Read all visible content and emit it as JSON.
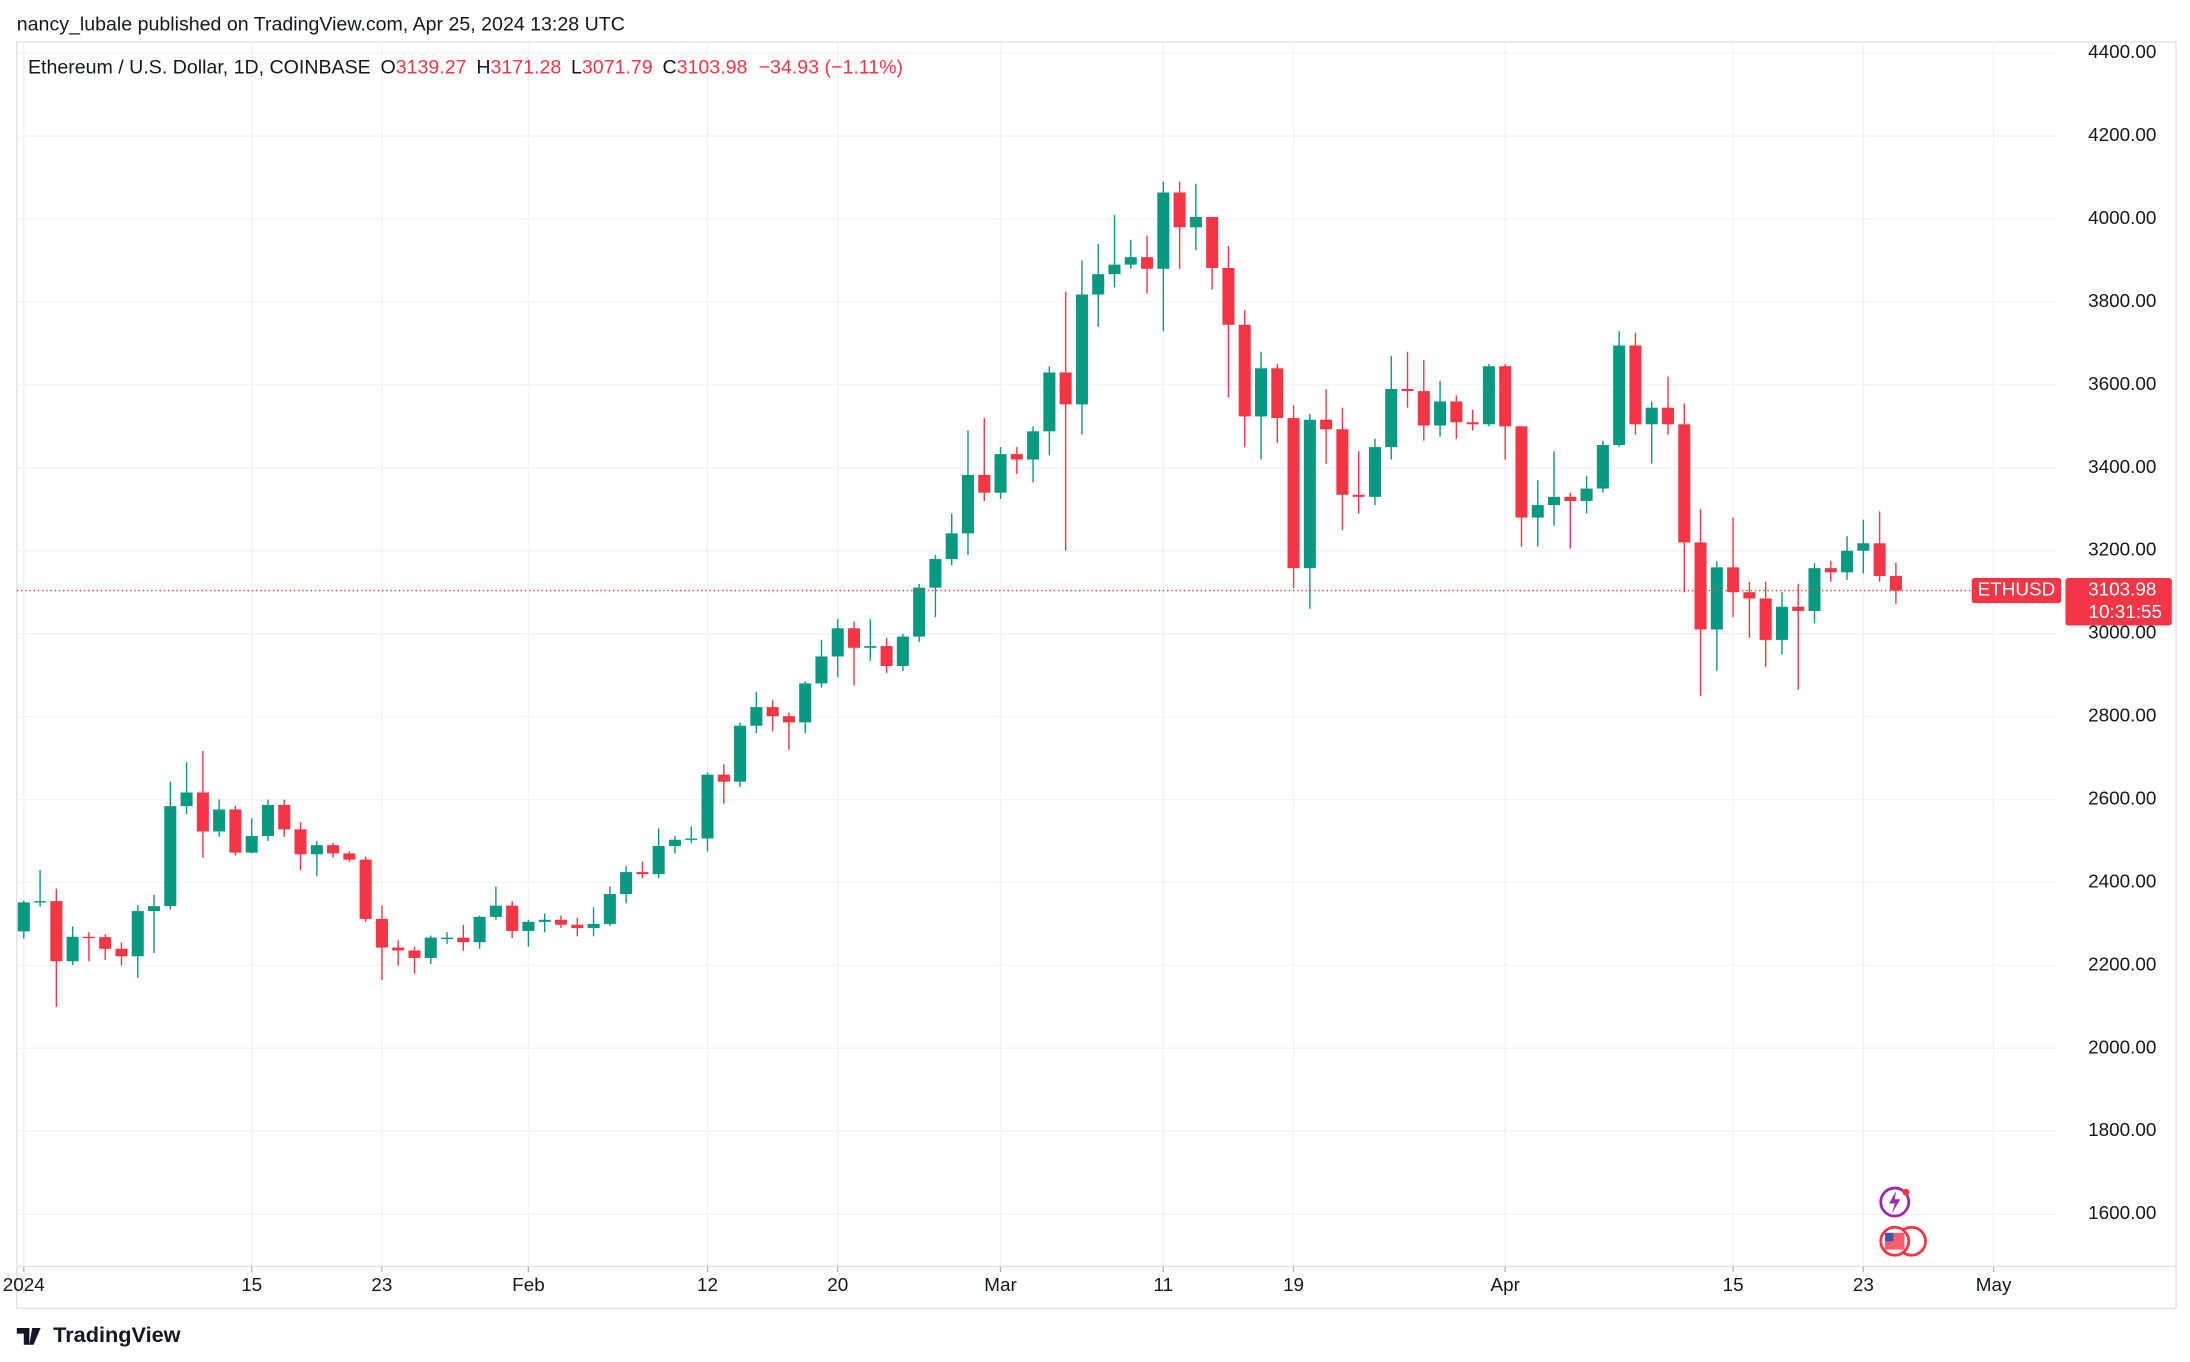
{
  "attribution": "nancy_lubale published on TradingView.com, Apr 25, 2024 13:28 UTC",
  "chart_data": {
    "type": "candlestick",
    "title": "Ethereum / U.S. Dollar, 1D, COINBASE",
    "open_label": "O",
    "high_label": "H",
    "low_label": "L",
    "close_label": "C",
    "change": "−34.93 (−1.11%)",
    "symbol_tag": "ETHUSD",
    "countdown": "10:31:55",
    "up_color": "#089981",
    "down_color": "#f23645",
    "open": [
      2282,
      2352,
      2355,
      2210,
      2269,
      2268,
      2240,
      2222,
      2331,
      2343,
      2584,
      2617,
      2523,
      2576,
      2472,
      2512,
      2587,
      2528,
      2468,
      2490,
      2470,
      2455,
      2312,
      2243,
      2236,
      2218,
      2267,
      2267,
      2256,
      2317,
      2344,
      2283,
      2305,
      2310,
      2298,
      2290,
      2300,
      2372,
      2425,
      2420,
      2488,
      2503,
      2506,
      2660,
      2643,
      2778,
      2823,
      2801,
      2786,
      2880,
      2945,
      3013,
      2966,
      2970,
      2922,
      2993,
      3111,
      3180,
      3242,
      3383,
      3340,
      3433,
      3420,
      3488,
      3630,
      3553,
      3818,
      3867,
      3890,
      3908,
      3880,
      4064,
      3980,
      4005,
      3882,
      3745,
      3524,
      3640,
      3520,
      3158,
      3516,
      3493,
      3335,
      3330,
      3450,
      3590,
      3585,
      3502,
      3560,
      3510,
      3505,
      3645,
      3500,
      3280,
      3310,
      3330,
      3320,
      3350,
      3455,
      3695,
      3505,
      3545,
      3505,
      3220,
      3010,
      3160,
      3100,
      3085,
      2985,
      3065,
      3055,
      3158,
      3148,
      3200,
      3218,
      3139.27
    ],
    "high": [
      2356,
      2430,
      2385,
      2294,
      2280,
      2275,
      2255,
      2345,
      2370,
      2643,
      2690,
      2717,
      2600,
      2585,
      2555,
      2600,
      2600,
      2545,
      2500,
      2495,
      2475,
      2462,
      2345,
      2260,
      2245,
      2272,
      2280,
      2298,
      2320,
      2390,
      2355,
      2310,
      2325,
      2320,
      2315,
      2340,
      2390,
      2440,
      2450,
      2530,
      2512,
      2535,
      2665,
      2685,
      2785,
      2860,
      2840,
      2810,
      2885,
      2985,
      3035,
      3030,
      3035,
      2990,
      3000,
      3120,
      3190,
      3290,
      3490,
      3520,
      3450,
      3450,
      3500,
      3645,
      3825,
      3900,
      3940,
      4010,
      3950,
      3960,
      4090,
      4090,
      4085,
      4005,
      3935,
      3780,
      3680,
      3650,
      3550,
      3530,
      3590,
      3545,
      3440,
      3470,
      3670,
      3680,
      3660,
      3610,
      3575,
      3540,
      3650,
      3650,
      3500,
      3370,
      3440,
      3340,
      3380,
      3465,
      3730,
      3725,
      3560,
      3620,
      3555,
      3300,
      3175,
      3280,
      3125,
      3125,
      3100,
      3120,
      3170,
      3175,
      3235,
      3275,
      3295,
      3171.28
    ],
    "low": [
      2265,
      2342,
      2100,
      2201,
      2210,
      2213,
      2200,
      2170,
      2230,
      2335,
      2565,
      2460,
      2510,
      2465,
      2470,
      2500,
      2510,
      2430,
      2415,
      2460,
      2450,
      2305,
      2165,
      2200,
      2180,
      2203,
      2252,
      2235,
      2240,
      2310,
      2266,
      2245,
      2280,
      2290,
      2270,
      2270,
      2295,
      2350,
      2410,
      2410,
      2470,
      2495,
      2475,
      2590,
      2630,
      2760,
      2765,
      2720,
      2760,
      2870,
      2895,
      2875,
      2935,
      2905,
      2910,
      2980,
      3040,
      3165,
      3190,
      3320,
      3325,
      3385,
      3365,
      3430,
      3200,
      3480,
      3740,
      3835,
      3880,
      3820,
      3730,
      3880,
      3925,
      3830,
      3570,
      3450,
      3420,
      3460,
      3110,
      3060,
      3410,
      3250,
      3290,
      3310,
      3420,
      3545,
      3465,
      3475,
      3470,
      3490,
      3500,
      3420,
      3210,
      3210,
      3260,
      3205,
      3290,
      3340,
      3450,
      3480,
      3410,
      3480,
      3100,
      2850,
      2910,
      3040,
      2990,
      2920,
      2950,
      2865,
      3025,
      3125,
      3130,
      3145,
      3125,
      3071.79
    ],
    "close": [
      2352,
      2355,
      2210,
      2269,
      2268,
      2240,
      2222,
      2331,
      2343,
      2584,
      2617,
      2523,
      2576,
      2472,
      2512,
      2587,
      2528,
      2468,
      2490,
      2470,
      2455,
      2312,
      2243,
      2236,
      2218,
      2267,
      2267,
      2256,
      2317,
      2344,
      2283,
      2305,
      2310,
      2298,
      2290,
      2300,
      2372,
      2425,
      2420,
      2488,
      2503,
      2506,
      2660,
      2643,
      2778,
      2823,
      2801,
      2786,
      2880,
      2945,
      3013,
      2966,
      2970,
      2922,
      2993,
      3111,
      3180,
      3242,
      3383,
      3340,
      3433,
      3420,
      3488,
      3630,
      3553,
      3818,
      3867,
      3890,
      3908,
      3880,
      4064,
      3980,
      4005,
      3882,
      3745,
      3524,
      3640,
      3520,
      3158,
      3516,
      3493,
      3335,
      3330,
      3450,
      3590,
      3585,
      3502,
      3560,
      3510,
      3505,
      3645,
      3500,
      3280,
      3310,
      3330,
      3320,
      3350,
      3455,
      3695,
      3505,
      3545,
      3505,
      3220,
      3010,
      3160,
      3100,
      3085,
      2985,
      3065,
      3055,
      3158,
      3148,
      3200,
      3218,
      3139,
      3103.98
    ],
    "xlim": [
      -0.43,
      124.9
    ],
    "xticks": [
      {
        "value": 0,
        "label": "2024"
      },
      {
        "value": 14,
        "label": "15"
      },
      {
        "value": 22,
        "label": "23"
      },
      {
        "value": 31,
        "label": "Feb"
      },
      {
        "value": 42,
        "label": "12"
      },
      {
        "value": 50,
        "label": "20"
      },
      {
        "value": 60,
        "label": "Mar"
      },
      {
        "value": 70,
        "label": "11"
      },
      {
        "value": 78,
        "label": "19"
      },
      {
        "value": 91,
        "label": "Apr"
      },
      {
        "value": 105,
        "label": "15"
      },
      {
        "value": 113,
        "label": "23"
      },
      {
        "value": 121,
        "label": "May"
      }
    ],
    "ylim": [
      1474,
      4427
    ],
    "yticks": [
      {
        "value": 1600,
        "label": "1600.00"
      },
      {
        "value": 1800,
        "label": "1800.00"
      },
      {
        "value": 2000,
        "label": "2000.00"
      },
      {
        "value": 2200,
        "label": "2200.00"
      },
      {
        "value": 2400,
        "label": "2400.00"
      },
      {
        "value": 2600,
        "label": "2600.00"
      },
      {
        "value": 2800,
        "label": "2800.00"
      },
      {
        "value": 3000,
        "label": "3000.00"
      },
      {
        "value": 3200,
        "label": "3200.00"
      },
      {
        "value": 3400,
        "label": "3400.00"
      },
      {
        "value": 3600,
        "label": "3600.00"
      },
      {
        "value": 3800,
        "label": "3800.00"
      },
      {
        "value": 4000,
        "label": "4000.00"
      },
      {
        "value": 4200,
        "label": "4200.00"
      },
      {
        "value": 4400,
        "label": "4400.00"
      }
    ],
    "grid": true,
    "axis_side": "right"
  },
  "footer": {
    "brand": "TradingView"
  }
}
